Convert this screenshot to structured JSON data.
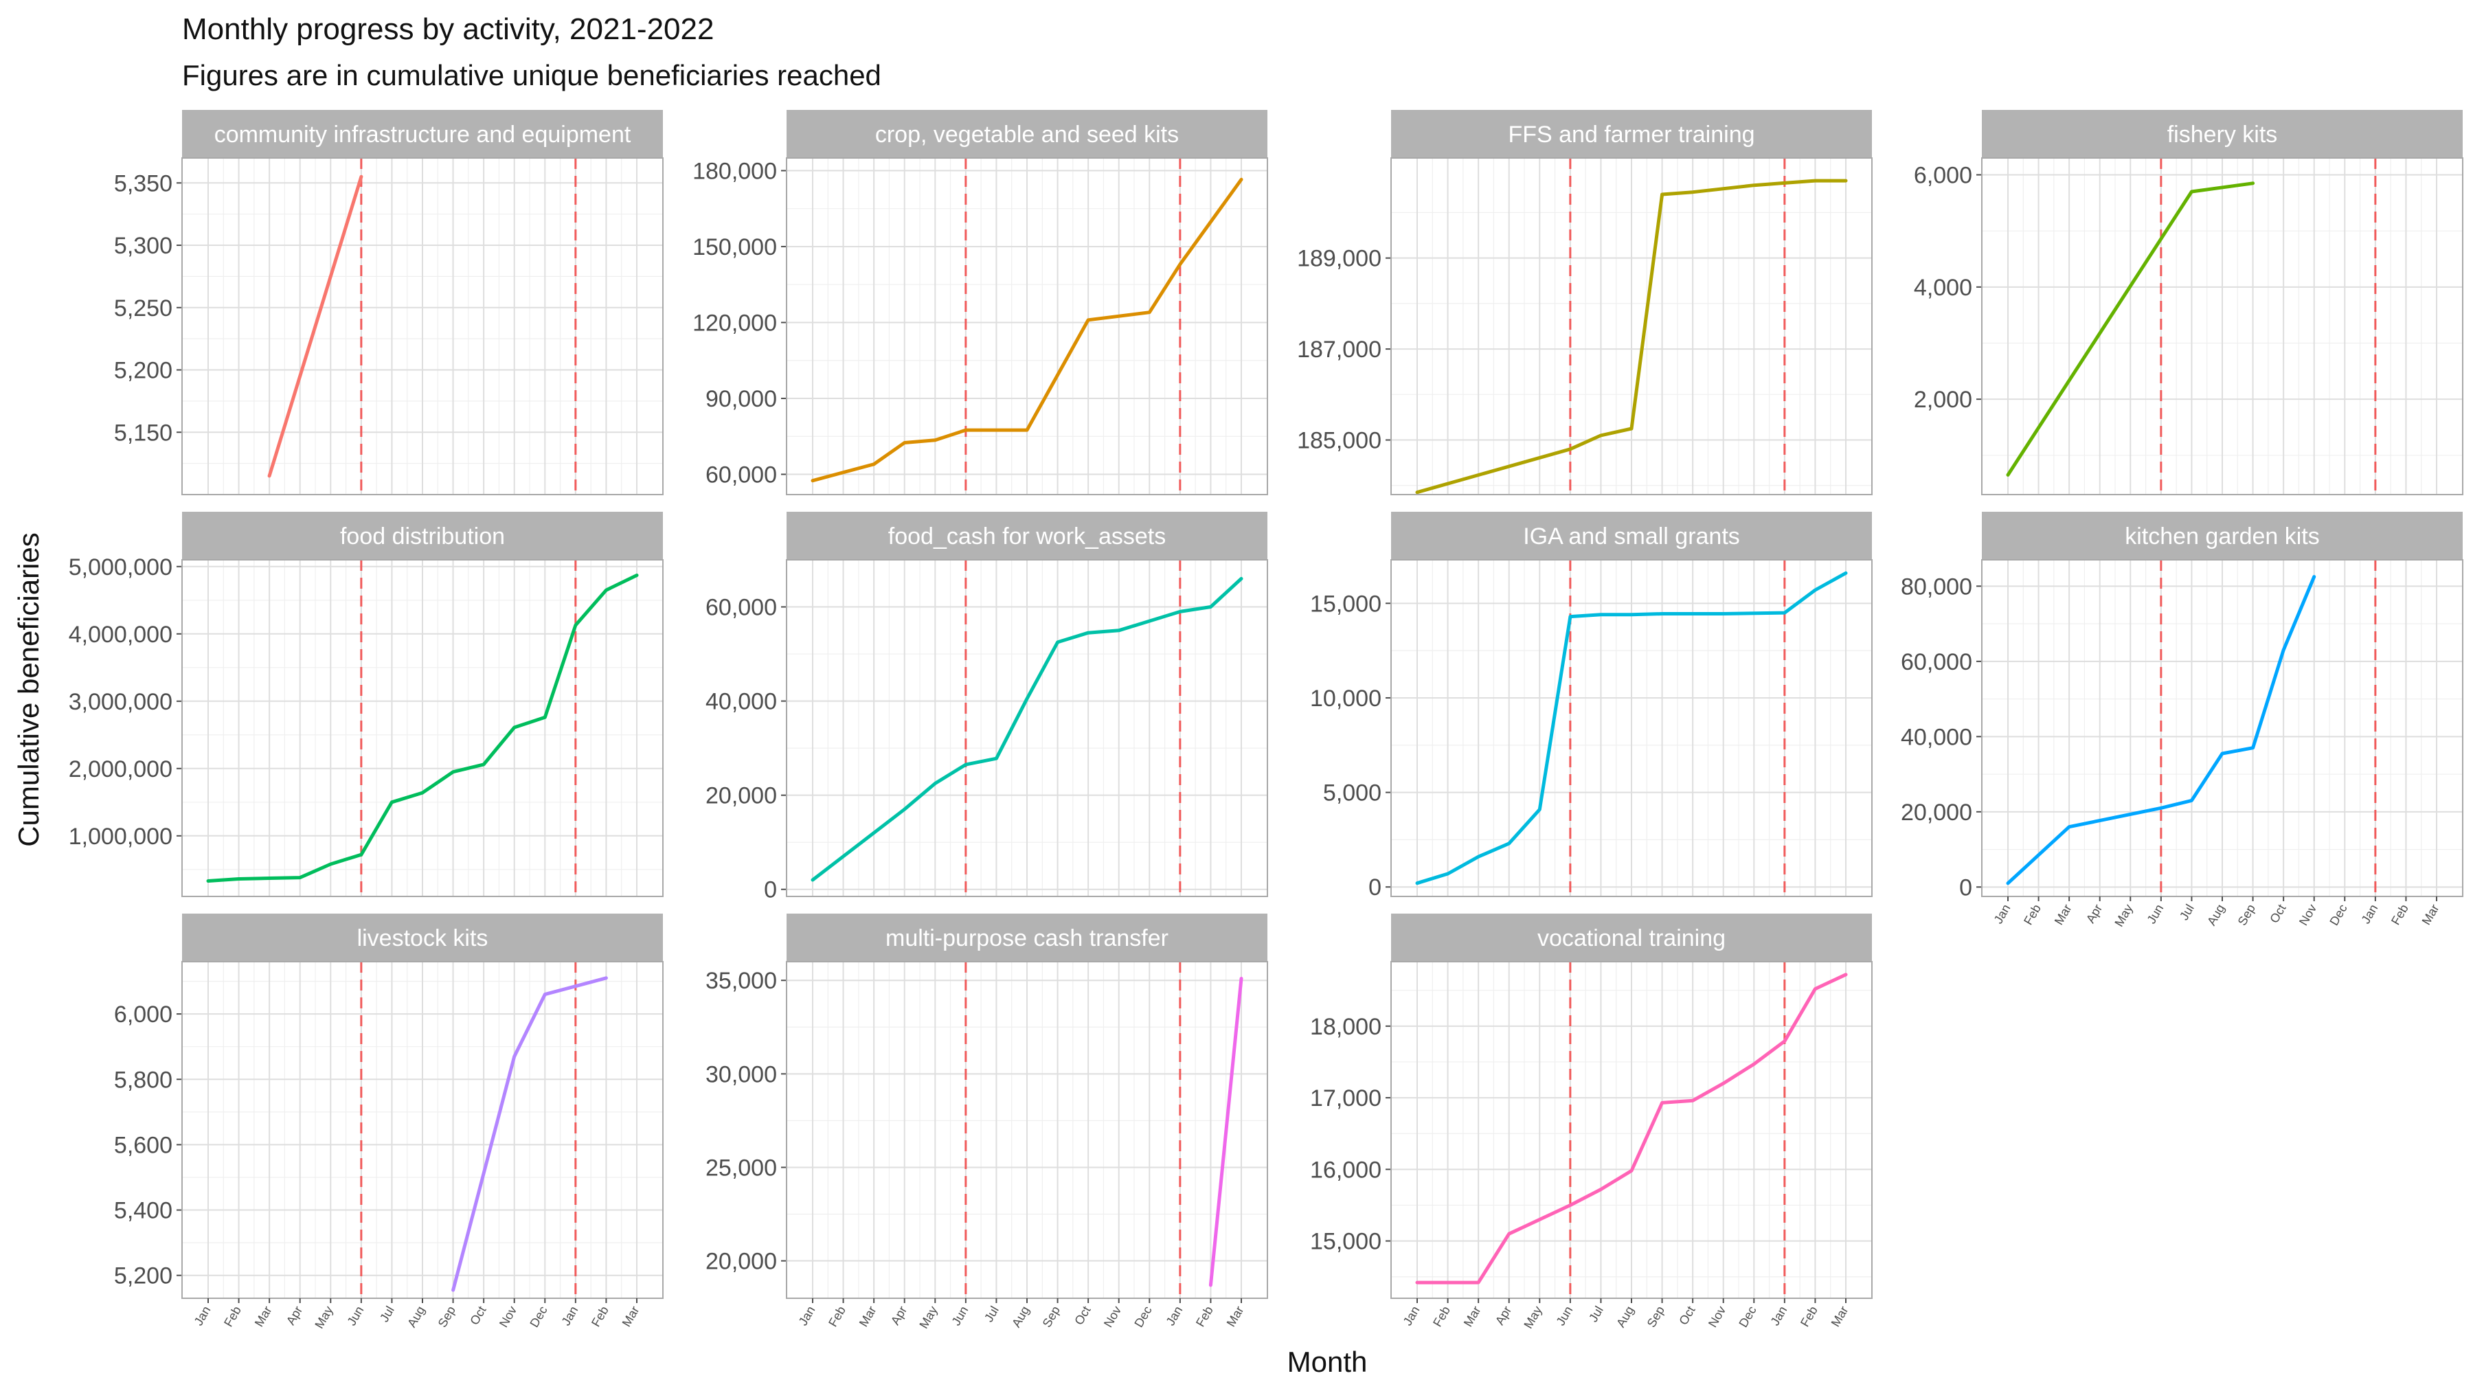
{
  "chart_data": {
    "type": "line",
    "title": "Monthly progress by activity, 2021-2022",
    "subtitle": "Figures are in cumulative unique beneficiaries reached",
    "xlabel": "Month",
    "ylabel": "Cumulative beneficiaries",
    "x_ticks": [
      "Jan",
      "Feb",
      "Mar",
      "Apr",
      "May",
      "Jun",
      "Jul",
      "Aug",
      "Sep",
      "Oct",
      "Nov",
      "Dec",
      "Jan",
      "Feb",
      "Mar"
    ],
    "reference_lines": [
      "Jun",
      "Jan"
    ],
    "reference_line_color": "#f05a5a",
    "x_range": [
      "Jan 2021",
      "Mar 2022"
    ],
    "grid": true,
    "facets": [
      {
        "label": "community infrastructure and equipment",
        "color": "#F8766D",
        "ylim": [
          5100,
          5370
        ],
        "y_ticks": [
          5150,
          5200,
          5250,
          5300,
          5350
        ],
        "y_tick_labels": [
          "5,150",
          "5,200",
          "5,250",
          "5,300",
          "5,350"
        ],
        "points": [
          [
            "Mar 2021",
            5115
          ],
          [
            "Jun 2021",
            5355
          ]
        ]
      },
      {
        "label": "crop, vegetable and seed kits",
        "color": "#DB8E00",
        "ylim": [
          52000,
          185000
        ],
        "y_ticks": [
          60000,
          90000,
          120000,
          150000,
          180000
        ],
        "y_tick_labels": [
          "60,000",
          "90,000",
          "120,000",
          "150,000",
          "180,000"
        ],
        "points": [
          [
            "Jan 2021",
            57500
          ],
          [
            "Mar 2021",
            64000
          ],
          [
            "Apr 2021",
            72500
          ],
          [
            "May 2021",
            73500
          ],
          [
            "Jun 2021",
            77500
          ],
          [
            "Aug 2021",
            77500
          ],
          [
            "Oct 2021",
            121000
          ],
          [
            "Dec 2021",
            124000
          ],
          [
            "Jan 2022",
            143000
          ],
          [
            "Mar 2022",
            176500
          ]
        ]
      },
      {
        "label": "FFS and farmer training",
        "color": "#AEA200",
        "ylim": [
          183800,
          191200
        ],
        "y_ticks": [
          185000,
          187000,
          189000
        ],
        "y_tick_labels": [
          "185,000",
          "187,000",
          "189,000"
        ],
        "points": [
          [
            "Jan 2021",
            183850
          ],
          [
            "Jun 2021",
            184800
          ],
          [
            "Jul 2021",
            185100
          ],
          [
            "Aug 2021",
            185250
          ],
          [
            "Sep 2021",
            190400
          ],
          [
            "Oct 2021",
            190450
          ],
          [
            "Dec 2021",
            190600
          ],
          [
            "Jan 2022",
            190650
          ],
          [
            "Feb 2022",
            190700
          ],
          [
            "Mar 2022",
            190700
          ]
        ]
      },
      {
        "label": "fishery kits",
        "color": "#64B200",
        "ylim": [
          300,
          6300
        ],
        "y_ticks": [
          2000,
          4000,
          6000
        ],
        "y_tick_labels": [
          "2,000",
          "4,000",
          "6,000"
        ],
        "points": [
          [
            "Jan 2021",
            650
          ],
          [
            "Jul 2021",
            5700
          ],
          [
            "Sep 2021",
            5850
          ]
        ]
      },
      {
        "label": "food distribution",
        "color": "#00BD5C",
        "ylim": [
          100000,
          5100000
        ],
        "y_ticks": [
          1000000,
          2000000,
          3000000,
          4000000,
          5000000
        ],
        "y_tick_labels": [
          "1,000,000",
          "2,000,000",
          "3,000,000",
          "4,000,000",
          "5,000,000"
        ],
        "points": [
          [
            "Jan 2021",
            330000
          ],
          [
            "Feb 2021",
            360000
          ],
          [
            "Mar 2021",
            370000
          ],
          [
            "Apr 2021",
            380000
          ],
          [
            "May 2021",
            580000
          ],
          [
            "Jun 2021",
            720000
          ],
          [
            "Jul 2021",
            1500000
          ],
          [
            "Aug 2021",
            1640000
          ],
          [
            "Sep 2021",
            1950000
          ],
          [
            "Oct 2021",
            2060000
          ],
          [
            "Nov 2021",
            2610000
          ],
          [
            "Dec 2021",
            2760000
          ],
          [
            "Jan 2022",
            4130000
          ],
          [
            "Feb 2022",
            4650000
          ],
          [
            "Mar 2022",
            4870000
          ]
        ]
      },
      {
        "label": "food_cash for work_assets",
        "color": "#00C1A7",
        "ylim": [
          -1500,
          70000
        ],
        "y_ticks": [
          0,
          20000,
          40000,
          60000
        ],
        "y_tick_labels": [
          "0",
          "20,000",
          "40,000",
          "60,000"
        ],
        "points": [
          [
            "Jan 2021",
            2000
          ],
          [
            "Mar 2021",
            12000
          ],
          [
            "Apr 2021",
            17000
          ],
          [
            "May 2021",
            22500
          ],
          [
            "Jun 2021",
            26500
          ],
          [
            "Jul 2021",
            27800
          ],
          [
            "Aug 2021",
            40500
          ],
          [
            "Sep 2021",
            52500
          ],
          [
            "Oct 2021",
            54500
          ],
          [
            "Nov 2021",
            55000
          ],
          [
            "Dec 2021",
            57000
          ],
          [
            "Jan 2022",
            59000
          ],
          [
            "Feb 2022",
            60000
          ],
          [
            "Mar 2022",
            66000
          ]
        ]
      },
      {
        "label": "IGA and small grants",
        "color": "#00BADE",
        "ylim": [
          -500,
          17300
        ],
        "y_ticks": [
          0,
          5000,
          10000,
          15000
        ],
        "y_tick_labels": [
          "0",
          "5,000",
          "10,000",
          "15,000"
        ],
        "points": [
          [
            "Jan 2021",
            200
          ],
          [
            "Feb 2021",
            700
          ],
          [
            "Mar 2021",
            1600
          ],
          [
            "Apr 2021",
            2300
          ],
          [
            "May 2021",
            4100
          ],
          [
            "Jun 2021",
            14300
          ],
          [
            "Jul 2021",
            14400
          ],
          [
            "Aug 2021",
            14400
          ],
          [
            "Sep 2021",
            14450
          ],
          [
            "Nov 2021",
            14450
          ],
          [
            "Jan 2022",
            14500
          ],
          [
            "Feb 2022",
            15700
          ],
          [
            "Mar 2022",
            16600
          ]
        ]
      },
      {
        "label": "kitchen garden kits",
        "color": "#00A6FF",
        "ylim": [
          -2500,
          87000
        ],
        "y_ticks": [
          0,
          20000,
          40000,
          60000,
          80000
        ],
        "y_tick_labels": [
          "0",
          "20,000",
          "40,000",
          "60,000",
          "80,000"
        ],
        "points": [
          [
            "Jan 2021",
            1000
          ],
          [
            "Mar 2021",
            16000
          ],
          [
            "Jun 2021",
            21000
          ],
          [
            "Jul 2021",
            23000
          ],
          [
            "Aug 2021",
            35500
          ],
          [
            "Sep 2021",
            37000
          ],
          [
            "Oct 2021",
            63000
          ],
          [
            "Nov 2021",
            82500
          ]
        ]
      },
      {
        "label": "livestock kits",
        "color": "#B385FF",
        "ylim": [
          5130,
          6160
        ],
        "y_ticks": [
          5200,
          5400,
          5600,
          5800,
          6000
        ],
        "y_tick_labels": [
          "5,200",
          "5,400",
          "5,600",
          "5,800",
          "6,000"
        ],
        "points": [
          [
            "Sep 2021",
            5155
          ],
          [
            "Nov 2021",
            5870
          ],
          [
            "Dec 2021",
            6060
          ],
          [
            "Jan 2022",
            6085
          ],
          [
            "Feb 2022",
            6110
          ]
        ]
      },
      {
        "label": "multi-purpose cash transfer",
        "color": "#EF67EB",
        "ylim": [
          18000,
          36000
        ],
        "y_ticks": [
          20000,
          25000,
          30000,
          35000
        ],
        "y_tick_labels": [
          "20,000",
          "25,000",
          "30,000",
          "35,000"
        ],
        "points": [
          [
            "Feb 2022",
            18700
          ],
          [
            "Mar 2022",
            35100
          ]
        ]
      },
      {
        "label": "vocational training",
        "color": "#FF63B6",
        "ylim": [
          14200,
          18900
        ],
        "y_ticks": [
          15000,
          16000,
          17000,
          18000
        ],
        "y_tick_labels": [
          "15,000",
          "16,000",
          "17,000",
          "18,000"
        ],
        "points": [
          [
            "Jan 2021",
            14420
          ],
          [
            "Mar 2021",
            14420
          ],
          [
            "Apr 2021",
            15100
          ],
          [
            "Jun 2021",
            15500
          ],
          [
            "Jul 2021",
            15720
          ],
          [
            "Aug 2021",
            15980
          ],
          [
            "Sep 2021",
            16930
          ],
          [
            "Oct 2021",
            16960
          ],
          [
            "Nov 2021",
            17200
          ],
          [
            "Dec 2021",
            17470
          ],
          [
            "Jan 2022",
            17790
          ],
          [
            "Feb 2022",
            18520
          ],
          [
            "Mar 2022",
            18720
          ]
        ]
      }
    ]
  }
}
